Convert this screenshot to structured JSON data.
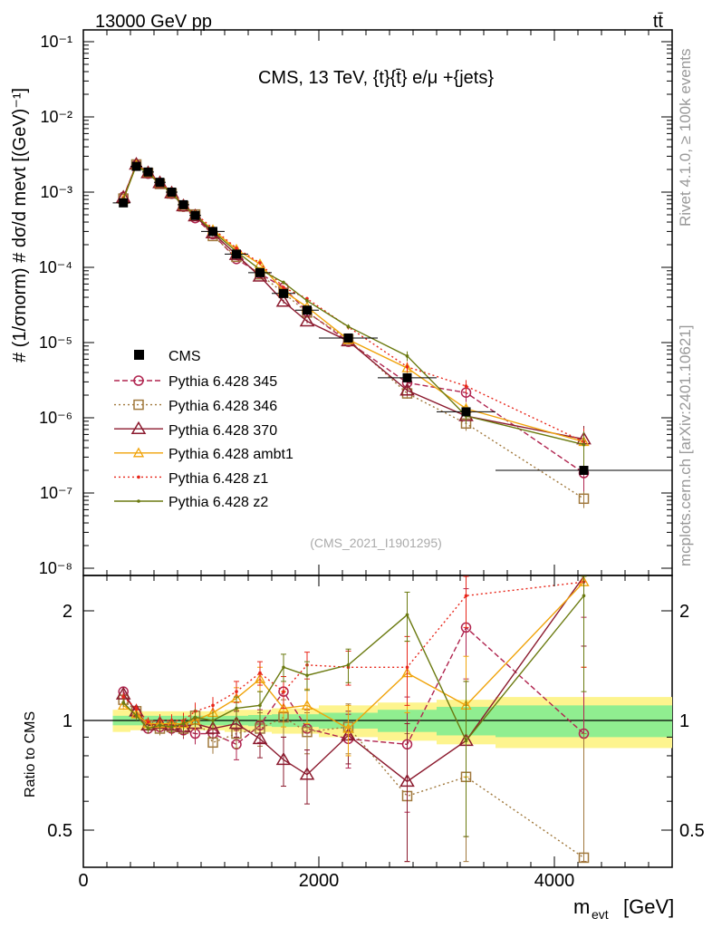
{
  "header": {
    "beam_label": "13000 GeV pp",
    "process_label": "tt̄"
  },
  "side_text": {
    "rivet": "Rivet 4.1.0, ≥ 100k events",
    "mcplots": "mcplots.cern.ch [arXiv:2401.10621]"
  },
  "chart_data": {
    "type": "line",
    "title": "CMS, 13 TeV, {t}{t̄} e/μ +{jets}",
    "analysis_id": "(CMS_2021_I1901295)",
    "xlabel": "m",
    "xlabel_sub": "evt",
    "xlabel_unit": "[GeV]",
    "ylabel": "# (1/σnorm) # dσ/d mevt [(GeV)⁻¹]",
    "ratio_ylabel": "Ratio to CMS",
    "xlim": [
      0,
      5000
    ],
    "ylim": [
      1e-08,
      0.1
    ],
    "ratio_ylim": [
      0.4,
      2.3
    ],
    "x_ticks": [
      "0",
      "2000",
      "4000"
    ],
    "y_ticks": [
      "10⁻¹",
      "10⁻²",
      "10⁻³",
      "10⁻⁴",
      "10⁻⁵",
      "10⁻⁶",
      "10⁻⁷",
      "10⁻⁸"
    ],
    "ratio_ticks": [
      "2",
      "1",
      "0.5"
    ],
    "x": [
      340,
      450,
      550,
      650,
      750,
      850,
      950,
      1100,
      1300,
      1500,
      1700,
      1900,
      2250,
      2750,
      3250,
      4250
    ],
    "bins": [
      [
        250,
        400
      ],
      [
        400,
        500
      ],
      [
        500,
        600
      ],
      [
        600,
        700
      ],
      [
        700,
        800
      ],
      [
        800,
        900
      ],
      [
        900,
        1000
      ],
      [
        1000,
        1200
      ],
      [
        1200,
        1400
      ],
      [
        1400,
        1600
      ],
      [
        1600,
        1800
      ],
      [
        1800,
        2000
      ],
      [
        2000,
        2500
      ],
      [
        2500,
        3000
      ],
      [
        3000,
        3500
      ],
      [
        3500,
        5000
      ]
    ],
    "data": {
      "name": "CMS",
      "values": [
        0.00072,
        0.0022,
        0.00185,
        0.00135,
        0.001,
        0.00068,
        0.00049,
        0.0003,
        0.00015,
        8.5e-05,
        4.5e-05,
        2.7e-05,
        1.15e-05,
        3.4e-06,
        1.2e-06,
        2e-07
      ],
      "stat_band": [
        0.03,
        0.03,
        0.03,
        0.03,
        0.03,
        0.03,
        0.03,
        0.03,
        0.03,
        0.035,
        0.04,
        0.04,
        0.05,
        0.07,
        0.09,
        0.1
      ],
      "total_band": [
        0.07,
        0.06,
        0.06,
        0.06,
        0.06,
        0.06,
        0.06,
        0.06,
        0.07,
        0.07,
        0.08,
        0.08,
        0.1,
        0.12,
        0.14,
        0.16
      ]
    },
    "series": [
      {
        "name": "Pythia 6.428 345",
        "color": "#b0244f",
        "dash": "6,3",
        "marker": "circle-open",
        "ratio": [
          1.2,
          1.05,
          0.95,
          0.96,
          0.95,
          0.94,
          0.92,
          0.92,
          0.86,
          0.97,
          1.2,
          0.95,
          0.89,
          0.86,
          1.8,
          0.92
        ],
        "ratio_err": [
          0.03,
          0.03,
          0.03,
          0.04,
          0.04,
          0.05,
          0.06,
          0.06,
          0.08,
          0.1,
          0.12,
          0.12,
          0.15,
          0.3,
          0.5,
          1.0
        ]
      },
      {
        "name": "Pythia 6.428 346",
        "color": "#a0783c",
        "dash": "2,3",
        "marker": "square-open",
        "ratio": [
          1.14,
          1.06,
          0.97,
          0.95,
          0.96,
          0.95,
          1.03,
          0.87,
          0.92,
          0.95,
          1.02,
          0.93,
          0.96,
          0.62,
          0.7,
          0.42
        ],
        "ratio_err": [
          0.03,
          0.03,
          0.03,
          0.04,
          0.04,
          0.05,
          0.06,
          0.06,
          0.08,
          0.1,
          0.12,
          0.12,
          0.15,
          0.3,
          0.4,
          0.5
        ]
      },
      {
        "name": "Pythia 6.428 370",
        "color": "#8b1a2e",
        "dash": "",
        "marker": "triangle-open",
        "ratio": [
          1.18,
          1.06,
          0.97,
          0.98,
          0.97,
          0.96,
          0.98,
          0.95,
          0.98,
          0.89,
          0.78,
          0.71,
          0.91,
          0.68,
          0.88,
          2.6
        ],
        "ratio_err": [
          0.03,
          0.03,
          0.03,
          0.04,
          0.04,
          0.05,
          0.06,
          0.06,
          0.08,
          0.1,
          0.12,
          0.12,
          0.15,
          0.3,
          0.4,
          1.0
        ]
      },
      {
        "name": "Pythia 6.428 ambt1",
        "color": "#f0a30a",
        "dash": "",
        "marker": "triangle-open-small",
        "ratio": [
          1.1,
          1.04,
          0.98,
          0.98,
          0.98,
          0.98,
          1.0,
          1.05,
          1.15,
          1.3,
          1.08,
          1.1,
          0.95,
          1.35,
          1.1,
          2.4
        ],
        "ratio_err": [
          0.03,
          0.03,
          0.03,
          0.04,
          0.04,
          0.05,
          0.06,
          0.06,
          0.08,
          0.1,
          0.12,
          0.12,
          0.15,
          0.3,
          0.4,
          1.0
        ]
      },
      {
        "name": "Pythia 6.428 z1",
        "color": "#e8261a",
        "dash": "2,3",
        "marker": "dot",
        "ratio": [
          1.16,
          1.08,
          0.99,
          1.0,
          1.0,
          1.0,
          1.06,
          1.1,
          1.2,
          1.35,
          1.2,
          1.42,
          1.4,
          1.4,
          2.2,
          2.4
        ],
        "ratio_err": [
          0.03,
          0.03,
          0.03,
          0.04,
          0.04,
          0.05,
          0.06,
          0.06,
          0.08,
          0.1,
          0.12,
          0.12,
          0.15,
          0.3,
          0.4,
          1.0
        ]
      },
      {
        "name": "Pythia 6.428 z2",
        "color": "#6b7a10",
        "dash": "",
        "marker": "dot",
        "ratio": [
          1.12,
          1.03,
          0.95,
          0.97,
          0.96,
          0.98,
          1.02,
          1.0,
          1.08,
          1.1,
          1.4,
          1.33,
          1.42,
          1.95,
          0.88,
          2.2
        ],
        "ratio_err": [
          0.03,
          0.03,
          0.03,
          0.04,
          0.04,
          0.05,
          0.06,
          0.06,
          0.08,
          0.1,
          0.12,
          0.12,
          0.15,
          0.3,
          0.4,
          1.0
        ]
      }
    ]
  }
}
